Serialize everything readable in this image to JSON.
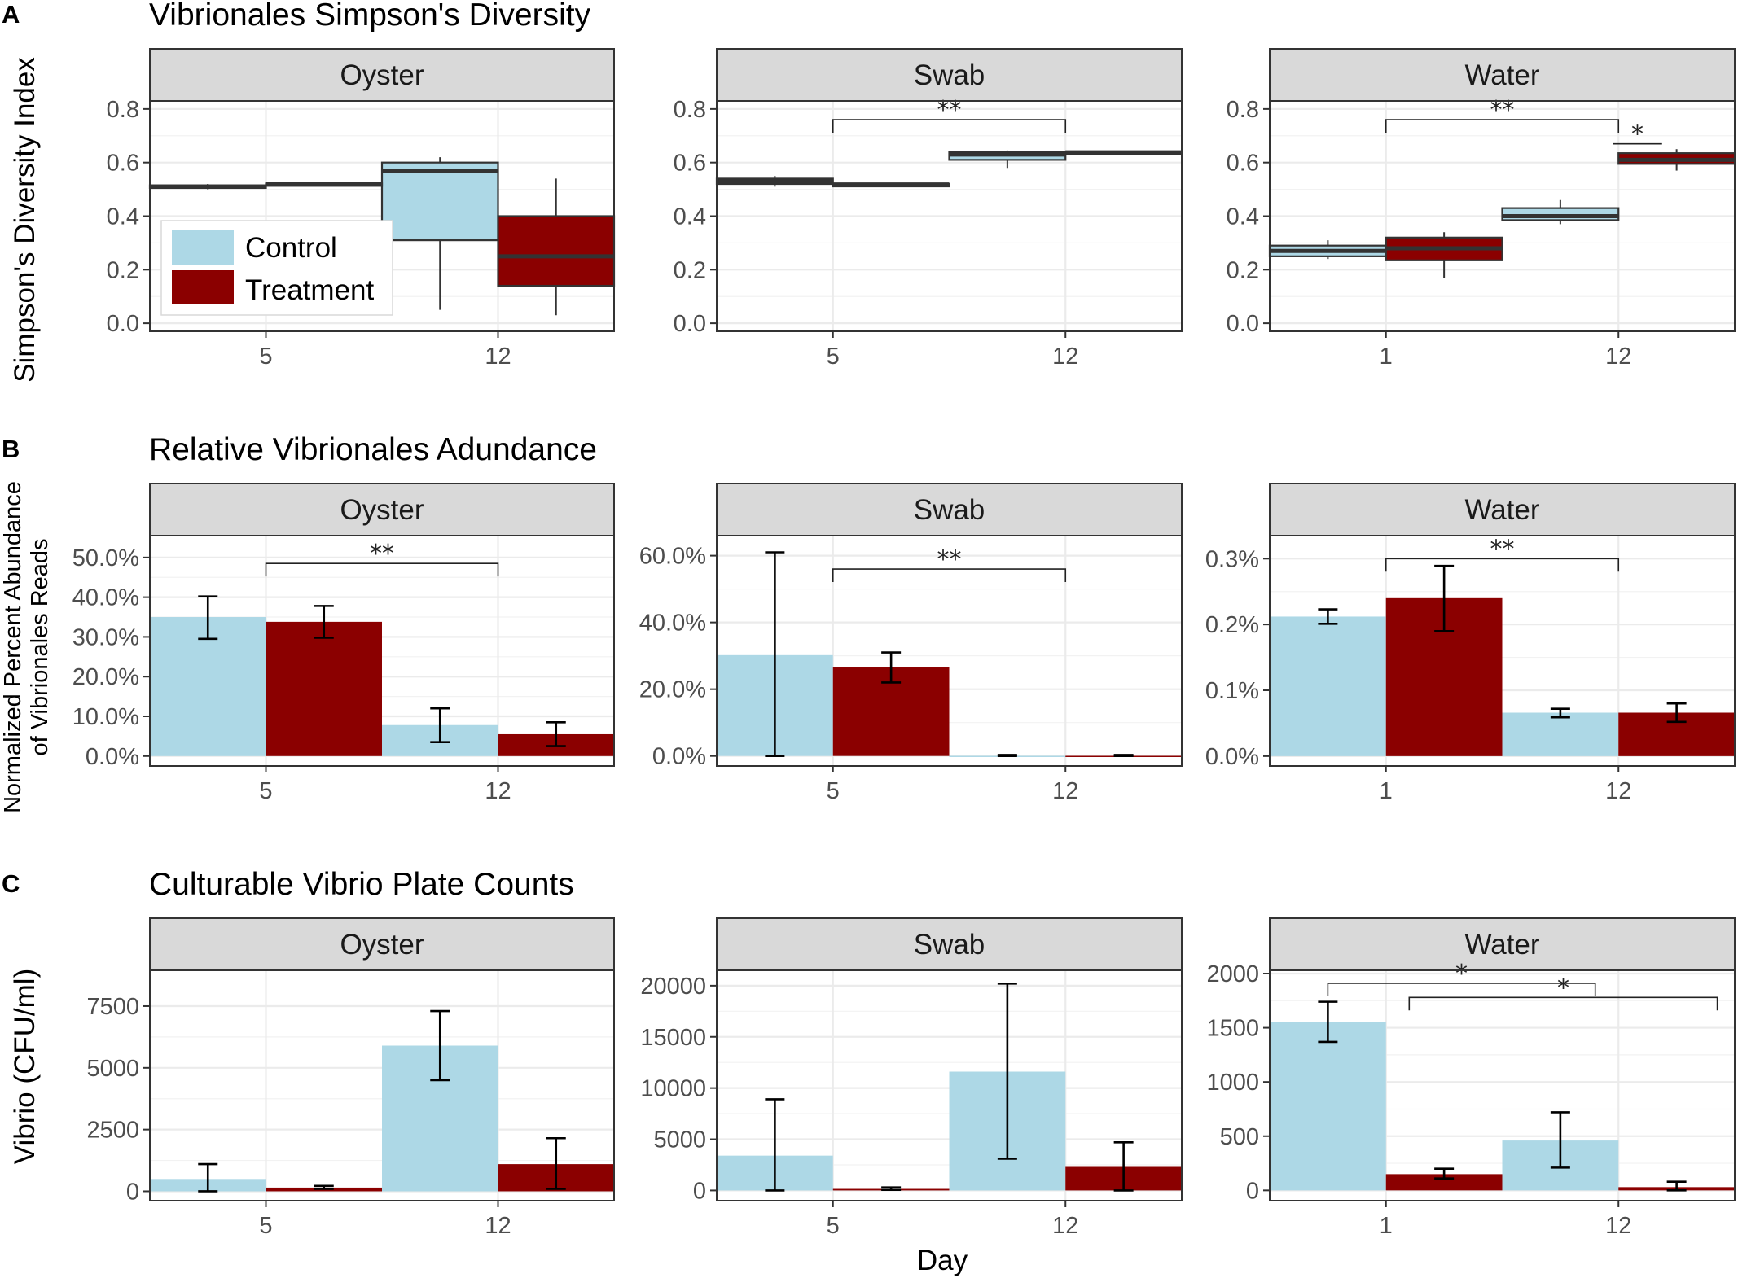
{
  "figure": {
    "xlabel": "Day",
    "colors": {
      "control": "#add8e6",
      "treatment": "#8b0000",
      "strip": "#d9d9d9",
      "grid": "#ebebeb",
      "axis": "#333333"
    }
  },
  "legend": {
    "items": [
      {
        "label": "Control",
        "color": "#add8e6"
      },
      {
        "label": "Treatment",
        "color": "#8b0000"
      }
    ]
  },
  "rows": [
    {
      "letter": "A",
      "title": "Vibrionales Simpson's Diversity",
      "ylabel": [
        "Simpson's Diversity Index"
      ]
    },
    {
      "letter": "B",
      "title": "Relative Vibrionales Adundance",
      "ylabel": [
        "Normalized Percent Abundance",
        "of Vibrionales Reads"
      ]
    },
    {
      "letter": "C",
      "title": "Culturable Vibrio Plate Counts",
      "ylabel": [
        "Vibrio (CFU/ml)"
      ]
    }
  ],
  "chart_data": [
    {
      "type": "box",
      "row": "A",
      "facet": "Oyster",
      "categories": [
        "5",
        "12"
      ],
      "ylim": [
        -0.03,
        0.83
      ],
      "yticks": [
        0.0,
        0.2,
        0.4,
        0.6,
        0.8
      ],
      "ytick_labels": [
        "0.0",
        "0.2",
        "0.4",
        "0.6",
        "0.8"
      ],
      "series": [
        {
          "name": "Control",
          "boxes": [
            {
              "min": 0.5,
              "q1": 0.505,
              "median": 0.51,
              "q3": 0.515,
              "max": 0.52
            },
            {
              "min": 0.05,
              "q1": 0.31,
              "median": 0.57,
              "q3": 0.6,
              "max": 0.62
            }
          ]
        },
        {
          "name": "Treatment",
          "boxes": [
            {
              "min": 0.515,
              "q1": 0.518,
              "median": 0.52,
              "q3": 0.522,
              "max": 0.525
            },
            {
              "min": 0.03,
              "q1": 0.14,
              "median": 0.25,
              "q3": 0.4,
              "max": 0.54
            }
          ]
        }
      ],
      "significance": []
    },
    {
      "type": "box",
      "row": "A",
      "facet": "Swab",
      "categories": [
        "5",
        "12"
      ],
      "ylim": [
        -0.03,
        0.83
      ],
      "yticks": [
        0.0,
        0.2,
        0.4,
        0.6,
        0.8
      ],
      "ytick_labels": [
        "0.0",
        "0.2",
        "0.4",
        "0.6",
        "0.8"
      ],
      "series": [
        {
          "name": "Control",
          "boxes": [
            {
              "min": 0.51,
              "q1": 0.52,
              "median": 0.53,
              "q3": 0.54,
              "max": 0.55
            },
            {
              "min": 0.58,
              "q1": 0.61,
              "median": 0.63,
              "q3": 0.64,
              "max": 0.645
            }
          ]
        },
        {
          "name": "Treatment",
          "boxes": [
            {
              "min": 0.514,
              "q1": 0.516,
              "median": 0.518,
              "q3": 0.52,
              "max": 0.522
            },
            {
              "min": 0.632,
              "q1": 0.635,
              "median": 0.638,
              "q3": 0.64,
              "max": 0.642
            }
          ]
        }
      ],
      "significance": [
        {
          "from": "5",
          "to": "12",
          "label": "**",
          "y": 0.76
        }
      ]
    },
    {
      "type": "box",
      "row": "A",
      "facet": "Water",
      "categories": [
        "1",
        "12"
      ],
      "ylim": [
        -0.03,
        0.83
      ],
      "yticks": [
        0.0,
        0.2,
        0.4,
        0.6,
        0.8
      ],
      "ytick_labels": [
        "0.0",
        "0.2",
        "0.4",
        "0.6",
        "0.8"
      ],
      "series": [
        {
          "name": "Control",
          "boxes": [
            {
              "min": 0.24,
              "q1": 0.25,
              "median": 0.27,
              "q3": 0.29,
              "max": 0.31
            },
            {
              "min": 0.37,
              "q1": 0.385,
              "median": 0.4,
              "q3": 0.43,
              "max": 0.46
            }
          ]
        },
        {
          "name": "Treatment",
          "boxes": [
            {
              "min": 0.17,
              "q1": 0.235,
              "median": 0.28,
              "q3": 0.32,
              "max": 0.34
            },
            {
              "min": 0.57,
              "q1": 0.595,
              "median": 0.61,
              "q3": 0.635,
              "max": 0.65
            }
          ]
        }
      ],
      "significance": [
        {
          "from": "1",
          "to": "12",
          "label": "**",
          "y": 0.76
        },
        {
          "from": "12-control",
          "to": "12-treatment",
          "label": "*",
          "y": 0.67
        }
      ]
    },
    {
      "type": "bar",
      "row": "B",
      "facet": "Oyster",
      "categories": [
        "5",
        "12"
      ],
      "ylim": [
        -2.5,
        55.5
      ],
      "yticks": [
        0,
        10,
        20,
        30,
        40,
        50
      ],
      "ytick_labels": [
        "0.0%",
        "10.0%",
        "20.0%",
        "30.0%",
        "40.0%",
        "50.0%"
      ],
      "series": [
        {
          "name": "Control",
          "values": [
            35.0,
            7.8
          ],
          "errors": [
            [
              29.5,
              40.2
            ],
            [
              3.5,
              12.0
            ]
          ]
        },
        {
          "name": "Treatment",
          "values": [
            33.8,
            5.5
          ],
          "errors": [
            [
              29.8,
              37.8
            ],
            [
              2.5,
              8.5
            ]
          ]
        }
      ],
      "significance": [
        {
          "from": "5",
          "to": "12",
          "label": "**",
          "y": 48.5
        }
      ]
    },
    {
      "type": "bar",
      "row": "B",
      "facet": "Swab",
      "categories": [
        "5",
        "12"
      ],
      "ylim": [
        -3,
        66
      ],
      "yticks": [
        0,
        20,
        40,
        60
      ],
      "ytick_labels": [
        "0.0%",
        "20.0%",
        "40.0%",
        "60.0%"
      ],
      "series": [
        {
          "name": "Control",
          "values": [
            30.2,
            0.05
          ],
          "errors": [
            [
              0.0,
              61.0
            ],
            [
              0.0,
              0.3
            ]
          ]
        },
        {
          "name": "Treatment",
          "values": [
            26.5,
            0.05
          ],
          "errors": [
            [
              22.0,
              31.0
            ],
            [
              0.0,
              0.3
            ]
          ]
        }
      ],
      "significance": [
        {
          "from": "5",
          "to": "12",
          "label": "**",
          "y": 56
        }
      ]
    },
    {
      "type": "bar",
      "row": "B",
      "facet": "Water",
      "categories": [
        "1",
        "12"
      ],
      "ylim": [
        -0.015,
        0.335
      ],
      "yticks": [
        0.0,
        0.1,
        0.2,
        0.3
      ],
      "ytick_labels": [
        "0.0%",
        "0.1%",
        "0.2%",
        "0.3%"
      ],
      "series": [
        {
          "name": "Control",
          "values": [
            0.212,
            0.066
          ],
          "errors": [
            [
              0.201,
              0.223
            ],
            [
              0.059,
              0.072
            ]
          ]
        },
        {
          "name": "Treatment",
          "values": [
            0.24,
            0.066
          ],
          "errors": [
            [
              0.19,
              0.289
            ],
            [
              0.052,
              0.08
            ]
          ]
        }
      ],
      "significance": [
        {
          "from": "1",
          "to": "12",
          "label": "**",
          "y": 0.3
        }
      ]
    },
    {
      "type": "bar",
      "row": "C",
      "facet": "Oyster",
      "categories": [
        "5",
        "12"
      ],
      "ylim": [
        -380,
        8950
      ],
      "yticks": [
        0,
        2500,
        5000,
        7500
      ],
      "ytick_labels": [
        "0",
        "2500",
        "5000",
        "7500"
      ],
      "series": [
        {
          "name": "Control",
          "values": [
            500,
            5900
          ],
          "errors": [
            [
              0,
              1100
            ],
            [
              4500,
              7300
            ]
          ]
        },
        {
          "name": "Treatment",
          "values": [
            150,
            1100
          ],
          "errors": [
            [
              100,
              220
            ],
            [
              100,
              2150
            ]
          ]
        }
      ],
      "significance": []
    },
    {
      "type": "bar",
      "row": "C",
      "facet": "Swab",
      "categories": [
        "5",
        "12"
      ],
      "ylim": [
        -1000,
        21500
      ],
      "yticks": [
        0,
        5000,
        10000,
        15000,
        20000
      ],
      "ytick_labels": [
        "0",
        "5000",
        "10000",
        "15000",
        "20000"
      ],
      "series": [
        {
          "name": "Control",
          "values": [
            3400,
            11600
          ],
          "errors": [
            [
              0,
              8900
            ],
            [
              3100,
              20200
            ]
          ]
        },
        {
          "name": "Treatment",
          "values": [
            150,
            2300
          ],
          "errors": [
            [
              60,
              300
            ],
            [
              0,
              4700
            ]
          ]
        }
      ],
      "significance": []
    },
    {
      "type": "bar",
      "row": "C",
      "facet": "Water",
      "categories": [
        "1",
        "12"
      ],
      "ylim": [
        -95,
        2030
      ],
      "yticks": [
        0,
        500,
        1000,
        1500,
        2000
      ],
      "ytick_labels": [
        "0",
        "500",
        "1000",
        "1500",
        "2000"
      ],
      "series": [
        {
          "name": "Control",
          "values": [
            1550,
            460
          ],
          "errors": [
            [
              1370,
              1740
            ],
            [
              210,
              720
            ]
          ]
        },
        {
          "name": "Treatment",
          "values": [
            150,
            30
          ],
          "errors": [
            [
              110,
              200
            ],
            [
              0,
              80
            ]
          ]
        }
      ],
      "significance": [
        {
          "from": "1-left",
          "to": "12-control",
          "label": "*",
          "y": 1910
        },
        {
          "from": "1-treatment",
          "to": "12-right",
          "label": "*",
          "y": 1780
        }
      ]
    }
  ]
}
